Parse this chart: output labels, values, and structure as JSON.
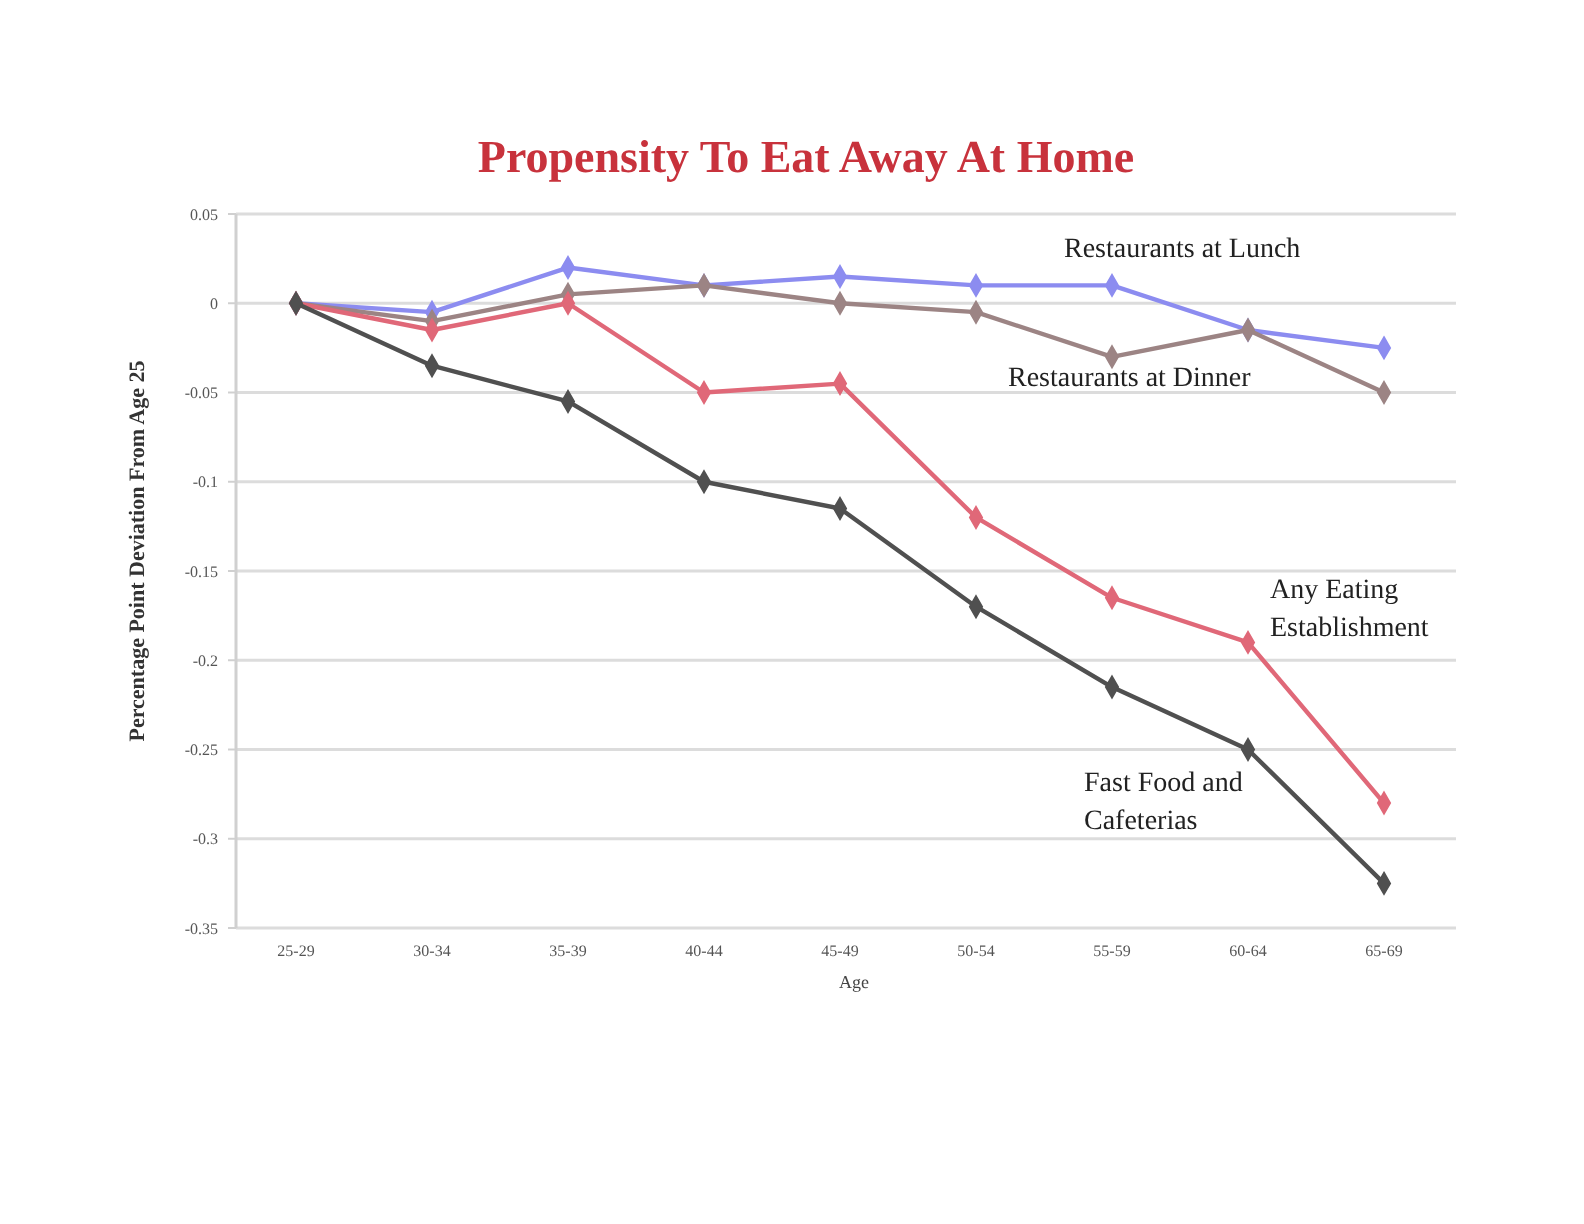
{
  "chart_data": {
    "type": "line",
    "title": "Propensity To Eat Away At Home",
    "xlabel": "Age",
    "ylabel": "Percentage Point Deviation From Age 25",
    "categories": [
      "25-29",
      "30-34",
      "35-39",
      "40-44",
      "45-49",
      "50-54",
      "55-59",
      "60-64",
      "65-69"
    ],
    "ylim": [
      -0.35,
      0.05
    ],
    "yticks": [
      -0.35,
      -0.3,
      -0.25,
      -0.2,
      -0.15,
      -0.1,
      -0.05,
      0,
      0.05
    ],
    "grid": "y",
    "legend": false,
    "marker": "diamond",
    "line_style": "solid",
    "series": [
      {
        "name": "Restaurants at Lunch",
        "color": "#8c8cf0",
        "values": [
          0,
          -0.005,
          0.02,
          0.01,
          0.015,
          0.01,
          0.01,
          -0.015,
          -0.025
        ]
      },
      {
        "name": "Restaurants at Dinner",
        "color": "#9c8484",
        "values": [
          0,
          -0.01,
          0.005,
          0.01,
          0,
          -0.005,
          -0.03,
          -0.015,
          -0.05
        ]
      },
      {
        "name": "Any Eating Establishment",
        "color": "#e06878",
        "values": [
          0,
          -0.015,
          0,
          -0.05,
          -0.045,
          -0.12,
          -0.165,
          -0.19,
          -0.28
        ]
      },
      {
        "name": "Fast Food and Cafeterias",
        "color": "#505050",
        "values": [
          0,
          -0.035,
          -0.055,
          -0.1,
          -0.115,
          -0.17,
          -0.215,
          -0.25,
          -0.325
        ]
      }
    ]
  }
}
